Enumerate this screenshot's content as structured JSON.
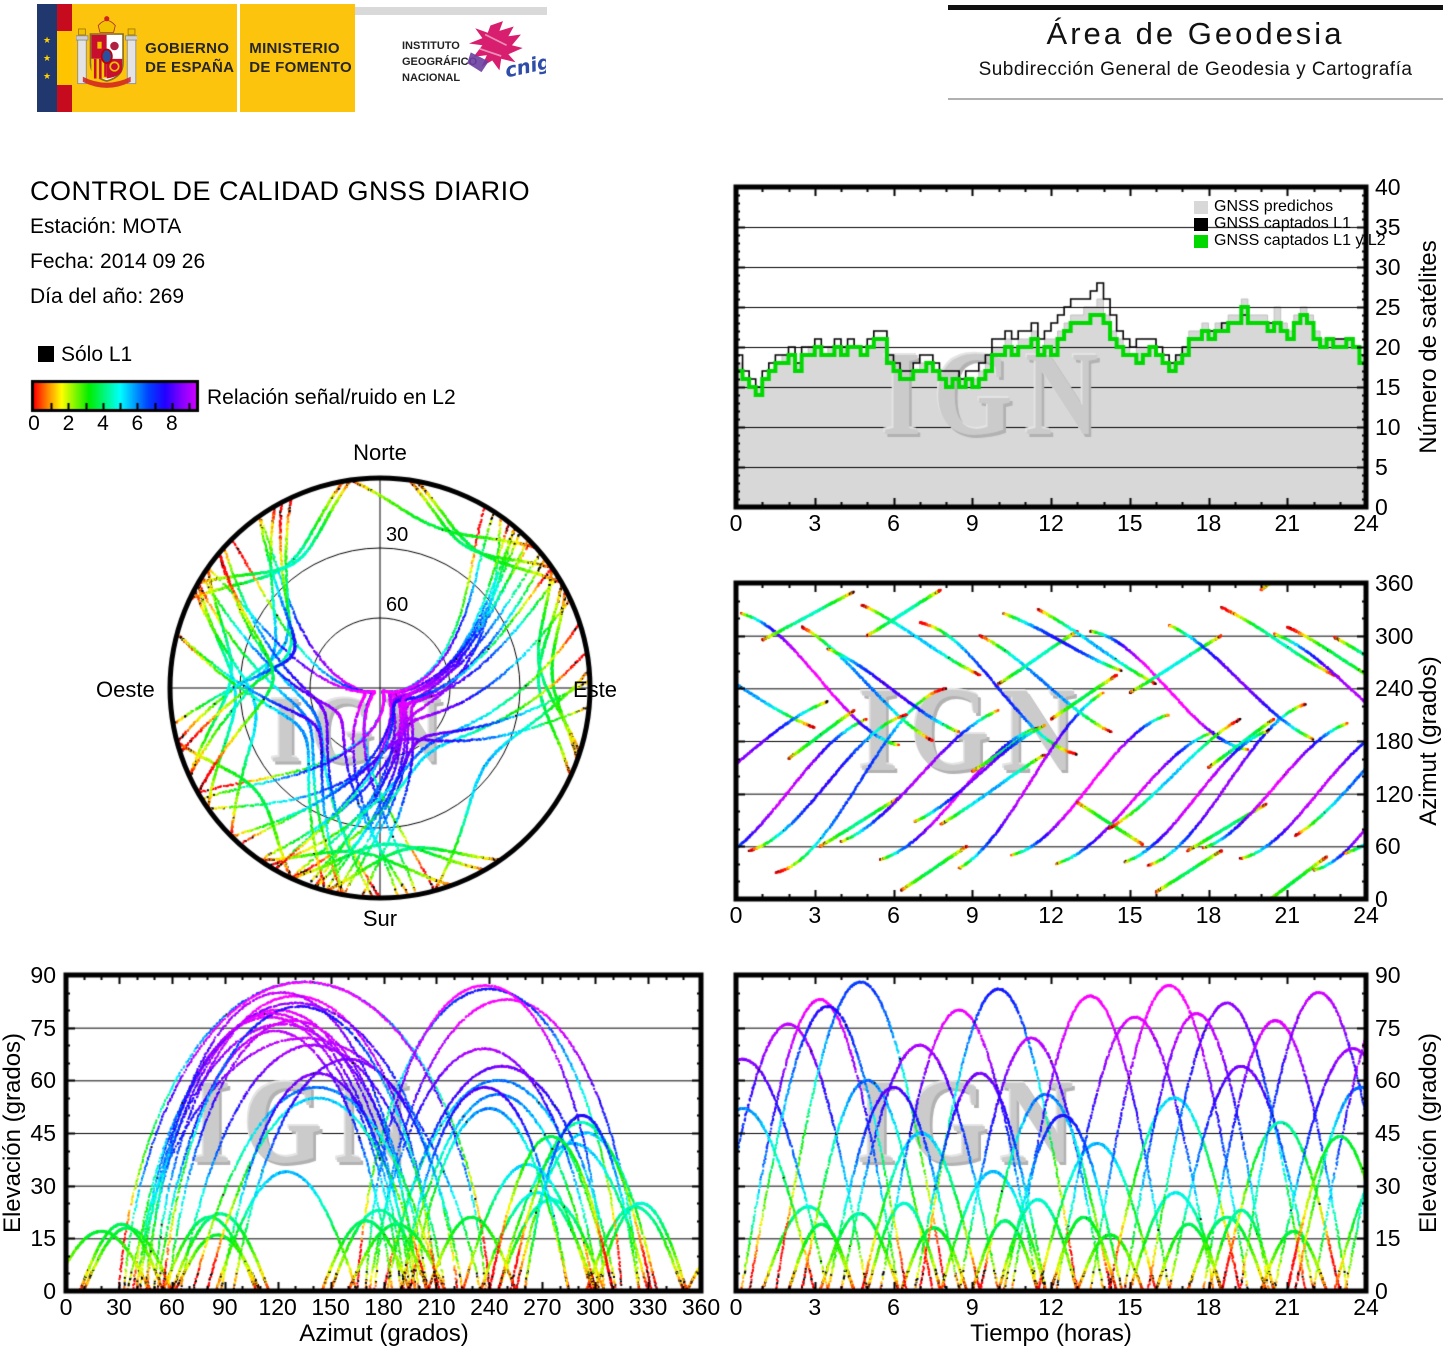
{
  "header": {
    "logo": {
      "gobierno1": "GOBIERNO",
      "gobierno2": "DE ESPAÑA",
      "ministerio1": "MINISTERIO",
      "ministerio2": "DE FOMENTO",
      "instituto": [
        "INSTITUTO",
        "GEOGRÁFICO",
        "NACIONAL"
      ],
      "cnig": "cnig",
      "colors": {
        "yellow": "#fdc40e",
        "eu_blue": "#20386e",
        "flag_red": "#c60b1e",
        "flag_yellow": "#ffc400",
        "cnig_magenta": "#d81e6e",
        "cnig_purple": "#6d3fa0",
        "cnig_blue": "#2f4da8"
      }
    },
    "area_title": "Área de Geodesia",
    "area_subtitle": "Subdirección General de Geodesia y Cartografía"
  },
  "info": {
    "title": "CONTROL DE CALIDAD GNSS DIARIO",
    "station": "Estación: MOTA",
    "date": "Fecha: 2014 09 26",
    "day_of_year": "Día del año: 269",
    "solo_l1": "Sólo L1",
    "colorbar": {
      "label": "Relación señal/ruido en L2",
      "tick_labels": [
        0,
        2,
        4,
        6,
        8
      ],
      "domain": [
        0,
        9.4
      ]
    }
  },
  "chart_data": {
    "watermark_text": "IGN",
    "snr_colormap": {
      "domain": [
        0,
        10
      ],
      "stops": [
        {
          "v": 0,
          "c": "#ff0000"
        },
        {
          "v": 0.8,
          "c": "#ff8800"
        },
        {
          "v": 1.6,
          "c": "#ffff00"
        },
        {
          "v": 3.2,
          "c": "#00ee00"
        },
        {
          "v": 5.0,
          "c": "#00ffff"
        },
        {
          "v": 6.6,
          "c": "#0044ff"
        },
        {
          "v": 7.6,
          "c": "#2200ff"
        },
        {
          "v": 8.6,
          "c": "#8800ff"
        },
        {
          "v": 10,
          "c": "#ff00ff"
        }
      ]
    },
    "satellite_count": {
      "type": "area",
      "ylabel": "Número de satélites",
      "xlim": [
        0,
        24
      ],
      "ylim": [
        0,
        40
      ],
      "xticks": [
        0,
        3,
        6,
        9,
        12,
        15,
        18,
        21,
        24
      ],
      "xminor": 1,
      "yticks": [
        0,
        5,
        10,
        15,
        20,
        25,
        30,
        35,
        40
      ],
      "yminor": 1,
      "grid": "horizontal",
      "legend": [
        {
          "label": "GNSS predichos",
          "color": "#d8d8d8"
        },
        {
          "label": "GNSS captados L1",
          "color": "#000000"
        },
        {
          "label": "GNSS captados L1 y L2",
          "color": "#00d800"
        }
      ],
      "t_step_h": 0.25,
      "series": {
        "predichos": [
          18,
          16,
          15,
          15,
          16,
          17,
          18,
          19,
          19,
          18,
          19,
          20,
          20,
          19,
          20,
          20,
          20,
          20,
          20,
          19,
          20,
          21,
          21,
          19,
          17,
          17,
          16,
          17,
          18,
          18,
          17,
          16,
          16,
          16,
          16,
          16,
          16,
          17,
          18,
          20,
          20,
          21,
          20,
          21,
          21,
          22,
          20,
          21,
          21,
          22,
          23,
          24,
          24,
          25,
          25,
          26,
          24,
          22,
          21,
          20,
          19,
          20,
          20,
          20,
          19,
          18,
          18,
          19,
          20,
          22,
          22,
          23,
          22,
          23,
          23,
          24,
          24,
          26,
          24,
          24,
          24,
          23,
          25,
          23,
          22,
          24,
          25,
          24,
          22,
          21,
          21,
          21,
          21,
          21,
          20,
          19,
          16
        ],
        "captados_l1": [
          19,
          17,
          16,
          15,
          17,
          18,
          19,
          19,
          20,
          18,
          20,
          20,
          21,
          20,
          20,
          21,
          20,
          21,
          20,
          20,
          21,
          22,
          22,
          19,
          18,
          17,
          17,
          18,
          19,
          19,
          18,
          17,
          17,
          17,
          16,
          17,
          17,
          18,
          19,
          21,
          21,
          22,
          21,
          22,
          22,
          23,
          21,
          22,
          23,
          24,
          25,
          26,
          26,
          26,
          27,
          28,
          26,
          24,
          22,
          21,
          20,
          21,
          21,
          21,
          20,
          19,
          18,
          19,
          20,
          21,
          21,
          22,
          22,
          22,
          23,
          23,
          23,
          24,
          23,
          23,
          23,
          23,
          23,
          22,
          21,
          23,
          24,
          23,
          21,
          20,
          21,
          21,
          21,
          21,
          20,
          19,
          17
        ],
        "captados_l1_l2": [
          17,
          16,
          15,
          14,
          16,
          17,
          18,
          18,
          19,
          17,
          19,
          19,
          20,
          19,
          19,
          20,
          19,
          20,
          20,
          19,
          20,
          21,
          21,
          18,
          17,
          16,
          16,
          17,
          17,
          18,
          17,
          16,
          15,
          16,
          15,
          16,
          15,
          16,
          17,
          19,
          19,
          20,
          19,
          20,
          20,
          21,
          19,
          20,
          19,
          21,
          22,
          23,
          23,
          23,
          24,
          24,
          23,
          21,
          20,
          19,
          19,
          18,
          19,
          20,
          19,
          18,
          17,
          18,
          19,
          21,
          21,
          22,
          21,
          22,
          22,
          23,
          23,
          25,
          23,
          23,
          23,
          22,
          23,
          22,
          21,
          23,
          24,
          23,
          21,
          20,
          21,
          20,
          20,
          21,
          20,
          18,
          16
        ]
      }
    },
    "satellite_passes": {
      "format": [
        "rise_hour",
        "duration_h",
        "azimuth_rise_deg",
        "azimuth_set_deg",
        "max_elevation_deg",
        "snr_offset"
      ],
      "passes": [
        [
          -1.0,
          6.0,
          40,
          205,
          76,
          0
        ],
        [
          0.2,
          6.0,
          325,
          175,
          83,
          0.3
        ],
        [
          1.0,
          3.5,
          295,
          350,
          24,
          0
        ],
        [
          1.5,
          6.5,
          30,
          240,
          88,
          -3.2
        ],
        [
          2.5,
          5.0,
          310,
          180,
          60,
          -1.8
        ],
        [
          3.2,
          3.0,
          60,
          115,
          22,
          0
        ],
        [
          4.0,
          6.0,
          65,
          215,
          70,
          0.2
        ],
        [
          4.8,
          4.5,
          335,
          255,
          45,
          -1.2
        ],
        [
          5.5,
          6.0,
          45,
          195,
          80,
          0.3
        ],
        [
          6.3,
          2.5,
          10,
          60,
          18,
          0
        ],
        [
          7.0,
          6.0,
          315,
          165,
          86,
          -2.8
        ],
        [
          7.8,
          4.0,
          85,
          165,
          34,
          0
        ],
        [
          8.5,
          5.5,
          35,
          235,
          72,
          0.3
        ],
        [
          9.3,
          5.0,
          300,
          190,
          56,
          -1.5
        ],
        [
          10.0,
          3.0,
          245,
          305,
          26,
          0
        ],
        [
          10.5,
          6.0,
          50,
          210,
          84,
          0.4
        ],
        [
          11.5,
          4.5,
          330,
          245,
          42,
          -0.8
        ],
        [
          12.2,
          6.0,
          40,
          190,
          78,
          0.2
        ],
        [
          13.0,
          2.5,
          110,
          62,
          16,
          0
        ],
        [
          13.5,
          6.0,
          305,
          170,
          87,
          0.4
        ],
        [
          14.2,
          5.0,
          80,
          205,
          55,
          -2.2
        ],
        [
          15.0,
          3.5,
          235,
          300,
          28,
          0
        ],
        [
          15.7,
          6.0,
          38,
          222,
          82,
          -1.0
        ],
        [
          16.5,
          5.5,
          312,
          182,
          64,
          0.1
        ],
        [
          17.2,
          3.0,
          55,
          108,
          21,
          0
        ],
        [
          17.8,
          5.5,
          58,
          200,
          77,
          0.3
        ],
        [
          18.5,
          4.5,
          332,
          252,
          48,
          -2.5
        ],
        [
          19.2,
          6.0,
          46,
          198,
          85,
          -0.6
        ],
        [
          20.0,
          2.5,
          352,
          408,
          17,
          0
        ],
        [
          20.5,
          6.0,
          302,
          172,
          69,
          0.2
        ],
        [
          21.3,
          5.0,
          72,
          212,
          58,
          -1.6
        ],
        [
          22.0,
          6.5,
          33,
          238,
          88,
          0.4
        ],
        [
          22.8,
          4.0,
          298,
          225,
          36,
          -0.5
        ],
        [
          23.2,
          6.0,
          52,
          185,
          74,
          0.2
        ],
        [
          -2.5,
          5.5,
          285,
          195,
          52,
          -1.4
        ],
        [
          -3.0,
          6.5,
          95,
          225,
          66,
          0.1
        ],
        [
          9.0,
          2.5,
          145,
          195,
          20,
          0
        ],
        [
          2.0,
          2.5,
          160,
          215,
          19,
          0
        ],
        [
          18.0,
          2.5,
          150,
          205,
          23,
          0
        ],
        [
          12.0,
          2.5,
          205,
          255,
          21,
          -0.4
        ],
        [
          5.0,
          2.8,
          300,
          352,
          25,
          0
        ],
        [
          16.0,
          2.5,
          8,
          55,
          19,
          0
        ],
        [
          0.5,
          6.0,
          55,
          210,
          81,
          -2.0
        ],
        [
          6.8,
          5.0,
          88,
          198,
          62,
          0.3
        ],
        [
          14.8,
          5.5,
          42,
          192,
          79,
          0.1
        ],
        [
          10.2,
          4.5,
          325,
          260,
          50,
          0.2
        ],
        [
          21.0,
          4.0,
          310,
          240,
          44,
          -2.8
        ],
        [
          3.5,
          5.0,
          285,
          190,
          58,
          0.2
        ]
      ]
    },
    "skyplot": {
      "type": "polar-scatter",
      "rings_elevation_deg": [
        30,
        60
      ],
      "ring_labels": [
        "30",
        "60"
      ],
      "compass": {
        "north": "Norte",
        "south": "Sur",
        "west": "Oeste",
        "east": "Este"
      }
    },
    "azimuth_vs_time": {
      "type": "scatter",
      "ylabel": "Azimut (grados)",
      "xlim": [
        0,
        24
      ],
      "ylim": [
        0,
        360
      ],
      "xticks": [
        0,
        3,
        6,
        9,
        12,
        15,
        18,
        21,
        24
      ],
      "xminor": 1,
      "yticks": [
        0,
        60,
        120,
        180,
        240,
        300,
        360
      ],
      "yminor": 20,
      "grid": "horizontal"
    },
    "elevation_vs_azimuth": {
      "type": "scatter",
      "xlabel": "Azimut (grados)",
      "ylabel": "Elevación (grados)",
      "xlim": [
        0,
        360
      ],
      "ylim": [
        0,
        90
      ],
      "xticks": [
        0,
        30,
        60,
        90,
        120,
        150,
        180,
        210,
        240,
        270,
        300,
        330,
        360
      ],
      "xminor": 10,
      "yticks": [
        0,
        15,
        30,
        45,
        60,
        75,
        90
      ],
      "yminor": 5,
      "grid": "horizontal"
    },
    "elevation_vs_time": {
      "type": "scatter",
      "xlabel": "Tiempo (horas)",
      "ylabel": "Elevación (grados)",
      "xlim": [
        0,
        24
      ],
      "ylim": [
        0,
        90
      ],
      "xticks": [
        0,
        3,
        6,
        9,
        12,
        15,
        18,
        21,
        24
      ],
      "xminor": 1,
      "yticks": [
        0,
        15,
        30,
        45,
        60,
        75,
        90
      ],
      "yminor": 5,
      "grid": "horizontal"
    }
  }
}
